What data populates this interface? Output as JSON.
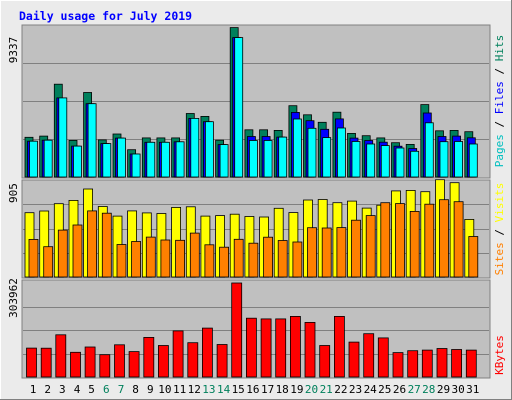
{
  "chart_data": [
    {
      "type": "bar",
      "title": "Daily usage for July 2019",
      "ymax_label": "9337",
      "ymax": 9337,
      "ylabel_parts": [
        "Pages",
        "Files",
        "Hits"
      ],
      "series": [
        {
          "name": "Hits",
          "color": "#00805c",
          "values": [
            2440,
            2510,
            5700,
            2250,
            5190,
            2280,
            2640,
            1680,
            2400,
            2400,
            2400,
            3900,
            3720,
            2260,
            9180,
            2900,
            2900,
            2860,
            4380,
            3820,
            3360,
            3980,
            2680,
            2540,
            2400,
            2110,
            2000,
            4450,
            2840,
            2860,
            2780
          ]
        },
        {
          "name": "Files",
          "color": "#0000ff",
          "values": [
            2200,
            2260,
            4860,
            1900,
            4500,
            2050,
            2390,
            1410,
            2130,
            2130,
            2160,
            3600,
            3400,
            1990,
            8560,
            2490,
            2490,
            2450,
            3970,
            3460,
            2930,
            3570,
            2390,
            2240,
            2140,
            1890,
            1750,
            3930,
            2490,
            2510,
            2410
          ]
        },
        {
          "name": "Pages",
          "color": "#00ffff",
          "values": [
            2200,
            2260,
            4860,
            1900,
            4500,
            2050,
            2390,
            1410,
            2130,
            2130,
            2160,
            3600,
            3400,
            1990,
            8560,
            2240,
            2240,
            2450,
            3560,
            2990,
            2420,
            3010,
            2180,
            2030,
            1930,
            1780,
            1580,
            3330,
            2170,
            2180,
            2030
          ]
        }
      ]
    },
    {
      "type": "bar",
      "ymax_label": "905",
      "ymax": 905,
      "ylabel_parts": [
        "Sites",
        "Visits"
      ],
      "series": [
        {
          "name": "Visits",
          "color": "#ffff00",
          "values": [
            600,
            616,
            684,
            715,
            821,
            658,
            568,
            617,
            598,
            592,
            649,
            655,
            568,
            573,
            586,
            564,
            560,
            641,
            601,
            718,
            723,
            693,
            708,
            643,
            670,
            803,
            808,
            796,
            908,
            880,
            537
          ]
        },
        {
          "name": "Sites",
          "color": "#ff8000",
          "values": [
            351,
            283,
            438,
            485,
            617,
            595,
            303,
            331,
            372,
            345,
            342,
            410,
            300,
            278,
            352,
            315,
            371,
            341,
            327,
            460,
            457,
            461,
            530,
            573,
            693,
            685,
            612,
            679,
            721,
            703,
            378
          ]
        }
      ]
    },
    {
      "type": "bar",
      "ymax_label": "303962",
      "ymax": 303962,
      "ylabel_parts": [
        "KBytes"
      ],
      "series": [
        {
          "name": "KBytes",
          "color": "#ff0000",
          "values": [
            93500,
            93000,
            136500,
            80000,
            97000,
            72000,
            104000,
            82000,
            128000,
            102000,
            149000,
            111000,
            158000,
            105000,
            303962,
            190000,
            188000,
            188000,
            196000,
            176500,
            102000,
            196000,
            113000,
            140000,
            126500,
            79000,
            85000,
            87000,
            92000,
            89000,
            87000
          ]
        }
      ]
    }
  ],
  "x_labels": [
    "1",
    "2",
    "3",
    "4",
    "5",
    "6",
    "7",
    "8",
    "9",
    "10",
    "11",
    "12",
    "13",
    "14",
    "15",
    "16",
    "17",
    "18",
    "19",
    "20",
    "21",
    "22",
    "23",
    "24",
    "25",
    "26",
    "27",
    "28",
    "29",
    "30",
    "31"
  ],
  "weekend_days": [
    6,
    7,
    13,
    14,
    20,
    21,
    27,
    28
  ],
  "colors": {
    "title": "#0000ff",
    "panel": "#c0c0c0",
    "frame_light": "#ffffff",
    "frame_dark": "#808080",
    "background": "#ebebeb",
    "weekend_label": "#00805c"
  }
}
